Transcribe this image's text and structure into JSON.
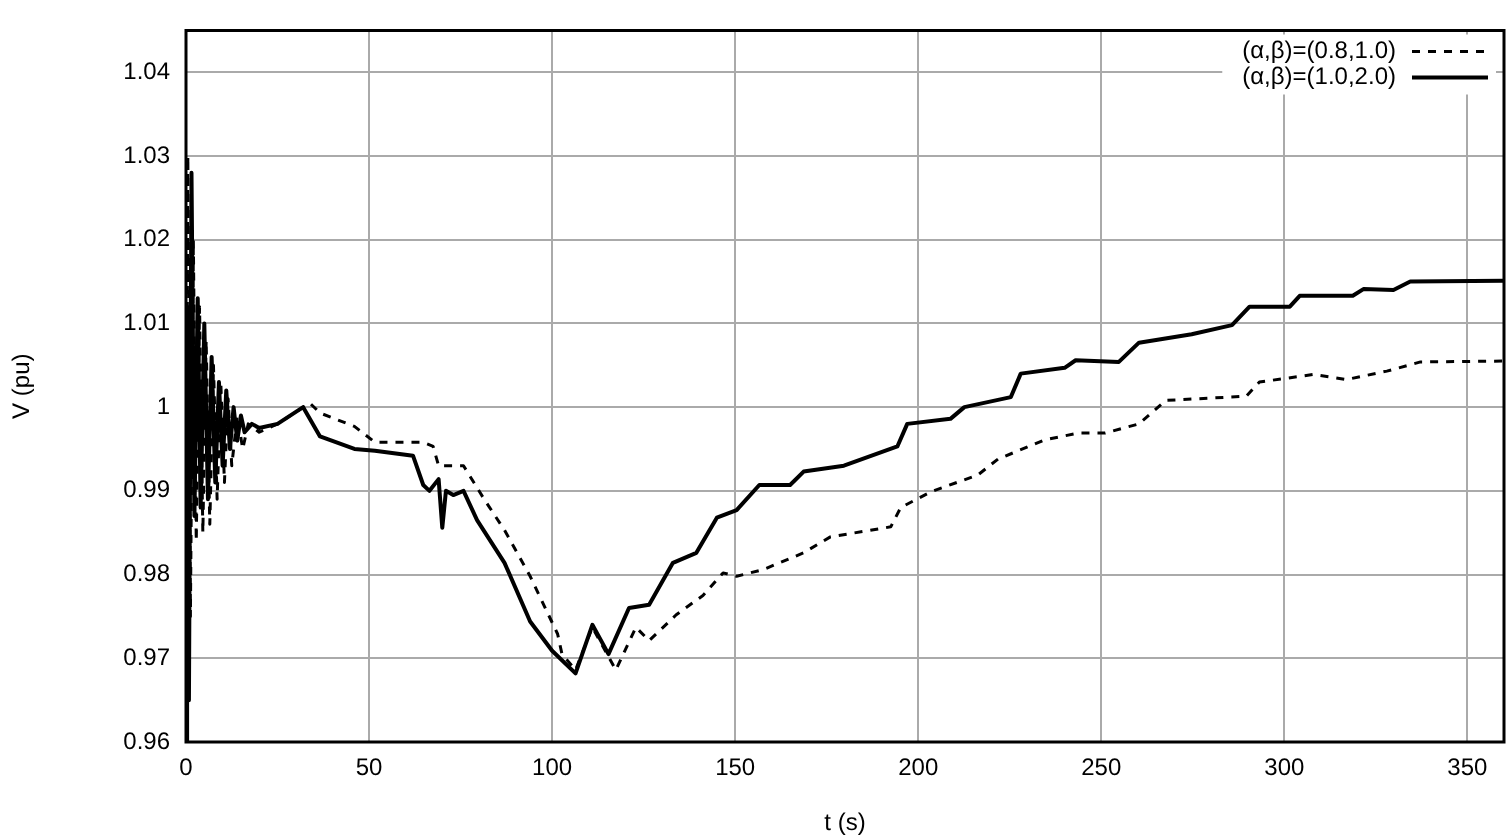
{
  "chart_data": {
    "type": "line",
    "xlabel": "t (s)",
    "ylabel": "V (pu)",
    "xlim": [
      0,
      360
    ],
    "xticks": [
      0,
      50,
      100,
      150,
      200,
      250,
      300,
      350
    ],
    "ylim": [
      0.96,
      1.045
    ],
    "yticks": [
      0.96,
      0.97,
      0.98,
      0.99,
      1,
      1.01,
      1.02,
      1.03,
      1.04
    ],
    "grid": true,
    "legend": "top right",
    "marker": "none",
    "series": [
      {
        "name": "(α,β)=(0.8,1.0)",
        "color": "#000000",
        "line_style": "dashed",
        "x": [
          0,
          0.5,
          1.2,
          2,
          2.8,
          3.7,
          4.6,
          5.5,
          6.5,
          7.5,
          8.5,
          9.5,
          10.5,
          11.5,
          12.5,
          14,
          15.5,
          17,
          20,
          25,
          33.8,
          36.6,
          46,
          51.6,
          64.8,
          67.5,
          69,
          75.8,
          81.3,
          87,
          94,
          101.5,
          102.7,
          106.4,
          111,
          117.4,
          122.9,
          126.5,
          133.9,
          141.2,
          146.7,
          150.4,
          157.7,
          168.7,
          176,
          192.5,
          195.2,
          203.5,
          216.3,
          221.8,
          234.6,
          243.8,
          251,
          260.3,
          267.6,
          289.6,
          293.2,
          307.9,
          317,
          328,
          337.2,
          360
        ],
        "values": [
          0.96,
          1.03,
          0.975,
          1.02,
          0.984,
          1.012,
          0.985,
          1.008,
          0.986,
          1.005,
          0.989,
          1.003,
          0.991,
          1.001,
          0.993,
          0.999,
          0.995,
          0.998,
          0.997,
          0.998,
          1.0005,
          0.9993,
          0.9977,
          0.9958,
          0.9958,
          0.9953,
          0.993,
          0.993,
          0.9891,
          0.9853,
          0.9798,
          0.9729,
          0.9705,
          0.9686,
          0.9737,
          0.9686,
          0.9737,
          0.9721,
          0.9752,
          0.9775,
          0.9802,
          0.9798,
          0.9806,
          0.9826,
          0.9845,
          0.9857,
          0.988,
          0.9899,
          0.9919,
          0.9938,
          0.9961,
          0.9969,
          0.9969,
          0.998,
          1.0008,
          1.0013,
          1.003,
          1.0039,
          1.0033,
          1.0043,
          1.0054,
          1.0055
        ]
      },
      {
        "name": "(α,β)=(1.0,2.0)",
        "color": "#000000",
        "line_style": "solid",
        "x": [
          0,
          0.3,
          0.8,
          1.5,
          2.3,
          3.2,
          4,
          5,
          6,
          7,
          8,
          9,
          10,
          11,
          12,
          13,
          14,
          15,
          16,
          18,
          20,
          25,
          32,
          36.6,
          46,
          51.6,
          62,
          64.8,
          66.5,
          69,
          70,
          71,
          73,
          75.8,
          79.5,
          87,
          94,
          100,
          106.4,
          111,
          115.4,
          121,
          126.5,
          133,
          139.4,
          145,
          150.4,
          156.6,
          165,
          168.7,
          179.7,
          194.3,
          197,
          208.8,
          212.6,
          225.3,
          228,
          240,
          243,
          254.8,
          260.3,
          274.7,
          285.7,
          290.5,
          301.5,
          304.2,
          318.7,
          321.6,
          329.8,
          334.4,
          360
        ],
        "values": [
          0.96,
          1.012,
          0.965,
          1.028,
          0.987,
          1.013,
          0.988,
          1.01,
          0.989,
          1.006,
          0.991,
          1.003,
          0.993,
          1.002,
          0.995,
          1.0,
          0.996,
          0.999,
          0.997,
          0.998,
          0.9975,
          0.998,
          1.0,
          0.9965,
          0.995,
          0.9948,
          0.9942,
          0.9907,
          0.99,
          0.9914,
          0.9856,
          0.99,
          0.9895,
          0.99,
          0.9865,
          0.9814,
          0.9744,
          0.9709,
          0.9682,
          0.974,
          0.9705,
          0.976,
          0.9764,
          0.9814,
          0.9826,
          0.9868,
          0.9877,
          0.9907,
          0.9907,
          0.9923,
          0.993,
          0.9953,
          0.998,
          0.9986,
          1.0,
          1.0012,
          1.004,
          1.0047,
          1.0056,
          1.0054,
          1.0077,
          1.0087,
          1.0098,
          1.012,
          1.012,
          1.0133,
          1.0133,
          1.0141,
          1.014,
          1.015,
          1.0151
        ]
      }
    ]
  }
}
